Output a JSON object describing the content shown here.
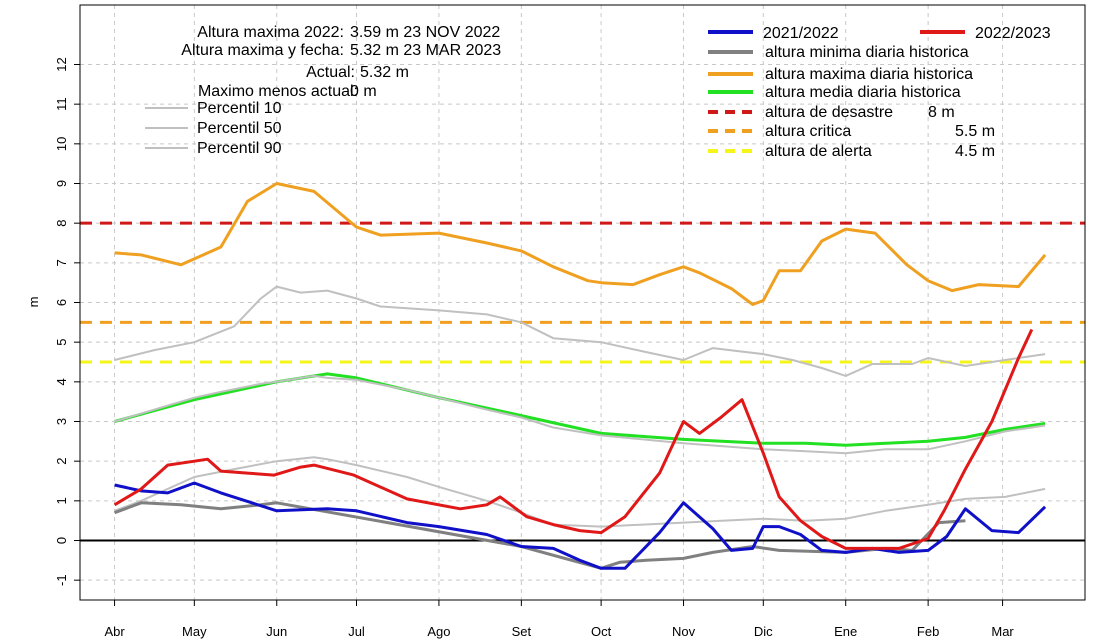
{
  "chart_data": {
    "type": "line",
    "ylabel": "m",
    "xlabel": "",
    "ylim": [
      -1.5,
      13.5
    ],
    "yticks": [
      -1,
      0,
      1,
      2,
      3,
      4,
      5,
      6,
      7,
      8,
      9,
      10,
      11,
      12
    ],
    "grid": true,
    "x_tick_labels": [
      "Abr",
      "May",
      "Jun",
      "Jul",
      "Ago",
      "Set",
      "Oct",
      "Nov",
      "Dic",
      "Ene",
      "Feb",
      "Mar"
    ],
    "x_tick_days": [
      0,
      30,
      61,
      91,
      122,
      153,
      183,
      214,
      244,
      275,
      306,
      334
    ],
    "info": [
      {
        "label": "Altura maxima 2022:",
        "value": "3.59 m 23 NOV 2022"
      },
      {
        "label": "Altura maxima y fecha:",
        "value": "5.32 m 23 MAR 2023"
      },
      {
        "label": "Actual:",
        "value": "5.32 m"
      },
      {
        "label": "Maximo menos actual:",
        "value": "0 m"
      }
    ],
    "legend_left": [
      {
        "name": "Percentil 10",
        "color": "#c0c0c0"
      },
      {
        "name": "Percentil 50",
        "color": "#c0c0c0"
      },
      {
        "name": "Percentil 90",
        "color": "#c0c0c0"
      }
    ],
    "legend_right_top": [
      {
        "name": "2021/2022",
        "color": "#1010c8"
      },
      {
        "name": "2022/2023",
        "color": "#e01818"
      }
    ],
    "legend_right": [
      {
        "name": "altura minima diaria historica",
        "value": "",
        "color": "#808080",
        "dash": false
      },
      {
        "name": "altura maxima diaria historica",
        "value": "",
        "color": "#f0a020",
        "dash": false
      },
      {
        "name": "altura media diaria historica",
        "value": "",
        "color": "#22e022",
        "dash": false
      },
      {
        "name": "altura de desastre",
        "value": "8 m",
        "color": "#d01818",
        "dash": true
      },
      {
        "name": "altura critica",
        "value": "5.5 m",
        "color": "#f0a020",
        "dash": true
      },
      {
        "name": "altura de alerta",
        "value": "4.5 m",
        "color": "#f5f51a",
        "dash": true
      }
    ],
    "thresholds": [
      {
        "name": "altura de desastre",
        "y": 8,
        "color": "#d01818"
      },
      {
        "name": "altura critica",
        "y": 5.5,
        "color": "#f0a020"
      },
      {
        "name": "altura de alerta",
        "y": 4.5,
        "color": "#f5f51a"
      }
    ],
    "series": [
      {
        "name": "altura maxima diaria historica",
        "color": "#f0a020",
        "width": 3,
        "x": [
          0,
          10,
          25,
          30,
          40,
          50,
          61,
          75,
          91,
          100,
          122,
          140,
          153,
          165,
          178,
          183,
          195,
          205,
          214,
          220,
          232,
          240,
          244,
          250,
          258,
          266,
          275,
          286,
          298,
          306,
          315,
          325,
          340,
          350
        ],
        "y": [
          7.25,
          7.2,
          6.95,
          7.1,
          7.4,
          8.55,
          9.0,
          8.8,
          7.9,
          7.7,
          7.75,
          7.5,
          7.3,
          6.9,
          6.55,
          6.5,
          6.45,
          6.7,
          6.9,
          6.75,
          6.35,
          5.95,
          6.05,
          6.8,
          6.8,
          7.55,
          7.85,
          7.75,
          6.95,
          6.55,
          6.3,
          6.45,
          6.4,
          7.2
        ]
      },
      {
        "name": "Percentil 90",
        "color": "#c0c0c0",
        "width": 2,
        "x": [
          0,
          15,
          30,
          45,
          55,
          61,
          70,
          80,
          91,
          100,
          122,
          140,
          153,
          165,
          183,
          200,
          214,
          225,
          244,
          255,
          266,
          275,
          285,
          300,
          306,
          320,
          335,
          350
        ],
        "y": [
          4.55,
          4.8,
          5.0,
          5.4,
          6.1,
          6.4,
          6.25,
          6.3,
          6.1,
          5.9,
          5.8,
          5.7,
          5.5,
          5.1,
          5.0,
          4.75,
          4.55,
          4.85,
          4.7,
          4.55,
          4.35,
          4.15,
          4.45,
          4.45,
          4.6,
          4.4,
          4.55,
          4.7
        ]
      },
      {
        "name": "altura media diaria historica",
        "color": "#22e022",
        "width": 3,
        "x": [
          0,
          30,
          61,
          80,
          91,
          122,
          153,
          183,
          214,
          244,
          260,
          275,
          290,
          306,
          320,
          335,
          350
        ],
        "y": [
          3.0,
          3.55,
          4.0,
          4.2,
          4.1,
          3.6,
          3.15,
          2.7,
          2.55,
          2.45,
          2.45,
          2.4,
          2.45,
          2.5,
          2.6,
          2.8,
          2.95
        ]
      },
      {
        "name": "Percentil 50",
        "color": "#c0c0c0",
        "width": 2,
        "x": [
          0,
          20,
          30,
          40,
          55,
          61,
          75,
          80,
          91,
          110,
          122,
          140,
          153,
          165,
          183,
          214,
          244,
          260,
          275,
          290,
          306,
          320,
          335,
          350
        ],
        "y": [
          3.0,
          3.4,
          3.6,
          3.75,
          3.95,
          4.0,
          4.15,
          4.1,
          4.05,
          3.8,
          3.6,
          3.3,
          3.1,
          2.85,
          2.65,
          2.45,
          2.3,
          2.25,
          2.2,
          2.3,
          2.3,
          2.5,
          2.75,
          2.9
        ]
      },
      {
        "name": "Percentil 10",
        "color": "#c0c0c0",
        "width": 2,
        "x": [
          0,
          10,
          30,
          45,
          61,
          75,
          80,
          91,
          110,
          122,
          140,
          153,
          165,
          183,
          214,
          244,
          260,
          275,
          290,
          306,
          320,
          335,
          350
        ],
        "y": [
          0.75,
          1.0,
          1.6,
          1.8,
          2.0,
          2.1,
          2.05,
          1.9,
          1.6,
          1.35,
          1.0,
          0.7,
          0.4,
          0.35,
          0.45,
          0.55,
          0.5,
          0.55,
          0.75,
          0.9,
          1.05,
          1.1,
          1.3
        ]
      },
      {
        "name": "altura minima diaria historica",
        "color": "#808080",
        "width": 3,
        "x": [
          0,
          10,
          25,
          40,
          55,
          61,
          153,
          183,
          190,
          200,
          214,
          225,
          240,
          250,
          275,
          290,
          300,
          310,
          320
        ],
        "y": [
          0.7,
          0.95,
          0.9,
          0.8,
          0.9,
          0.95,
          -0.15,
          -0.7,
          -0.55,
          -0.5,
          -0.45,
          -0.3,
          -0.15,
          -0.25,
          -0.3,
          -0.2,
          -0.25,
          0.45,
          0.5
        ]
      },
      {
        "name": "2021/2022",
        "color": "#1010c8",
        "width": 3,
        "x": [
          0,
          10,
          20,
          30,
          40,
          61,
          80,
          91,
          110,
          122,
          140,
          153,
          165,
          175,
          183,
          192,
          205,
          214,
          225,
          232,
          240,
          244,
          250,
          258,
          266,
          275,
          285,
          295,
          306,
          313,
          320,
          330,
          340,
          350
        ],
        "y": [
          1.4,
          1.25,
          1.2,
          1.45,
          1.2,
          0.75,
          0.8,
          0.75,
          0.45,
          0.35,
          0.15,
          -0.15,
          -0.2,
          -0.5,
          -0.7,
          -0.7,
          0.2,
          0.95,
          0.3,
          -0.25,
          -0.2,
          0.35,
          0.35,
          0.15,
          -0.25,
          -0.3,
          -0.2,
          -0.3,
          -0.25,
          0.1,
          0.8,
          0.25,
          0.2,
          0.85
        ]
      },
      {
        "name": "2022/2023",
        "color": "#e01818",
        "width": 3,
        "x": [
          0,
          10,
          20,
          30,
          35,
          40,
          50,
          60,
          70,
          75,
          90,
          110,
          130,
          140,
          145,
          155,
          165,
          175,
          183,
          192,
          205,
          214,
          220,
          228,
          236,
          244,
          250,
          258,
          266,
          275,
          285,
          295,
          306,
          312,
          320,
          330,
          340,
          345
        ],
        "y": [
          0.9,
          1.3,
          1.9,
          2.0,
          2.05,
          1.75,
          1.7,
          1.65,
          1.85,
          1.9,
          1.65,
          1.05,
          0.8,
          0.9,
          1.1,
          0.6,
          0.4,
          0.25,
          0.2,
          0.6,
          1.7,
          3.0,
          2.7,
          3.1,
          3.55,
          2.2,
          1.1,
          0.5,
          0.1,
          -0.2,
          -0.2,
          -0.2,
          0.05,
          0.75,
          1.8,
          3.0,
          4.6,
          5.32
        ]
      }
    ]
  }
}
